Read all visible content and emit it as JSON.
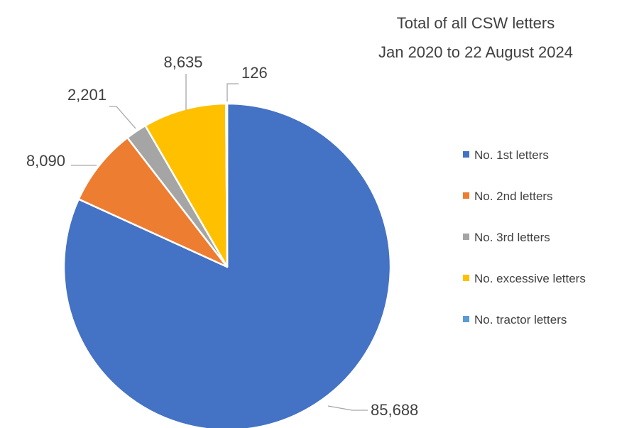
{
  "chart_data": {
    "type": "pie",
    "title_lines": [
      "Total of all CSW letters",
      "Jan 2020 to 22 August 2024"
    ],
    "legend_position": "right",
    "series": [
      {
        "name": "No. 1st letters",
        "value": 85688,
        "label": "85,688",
        "color": "#4472C4"
      },
      {
        "name": "No. 2nd letters",
        "value": 8090,
        "label": "8,090",
        "color": "#ED7D31"
      },
      {
        "name": "No. 3rd letters",
        "value": 2201,
        "label": "2,201",
        "color": "#A5A5A5"
      },
      {
        "name": "No. excessive letters",
        "value": 8635,
        "label": "8,635",
        "color": "#FFC000"
      },
      {
        "name": "No. tractor letters",
        "value": 126,
        "label": "126",
        "color": "#5B9BD5"
      }
    ]
  }
}
